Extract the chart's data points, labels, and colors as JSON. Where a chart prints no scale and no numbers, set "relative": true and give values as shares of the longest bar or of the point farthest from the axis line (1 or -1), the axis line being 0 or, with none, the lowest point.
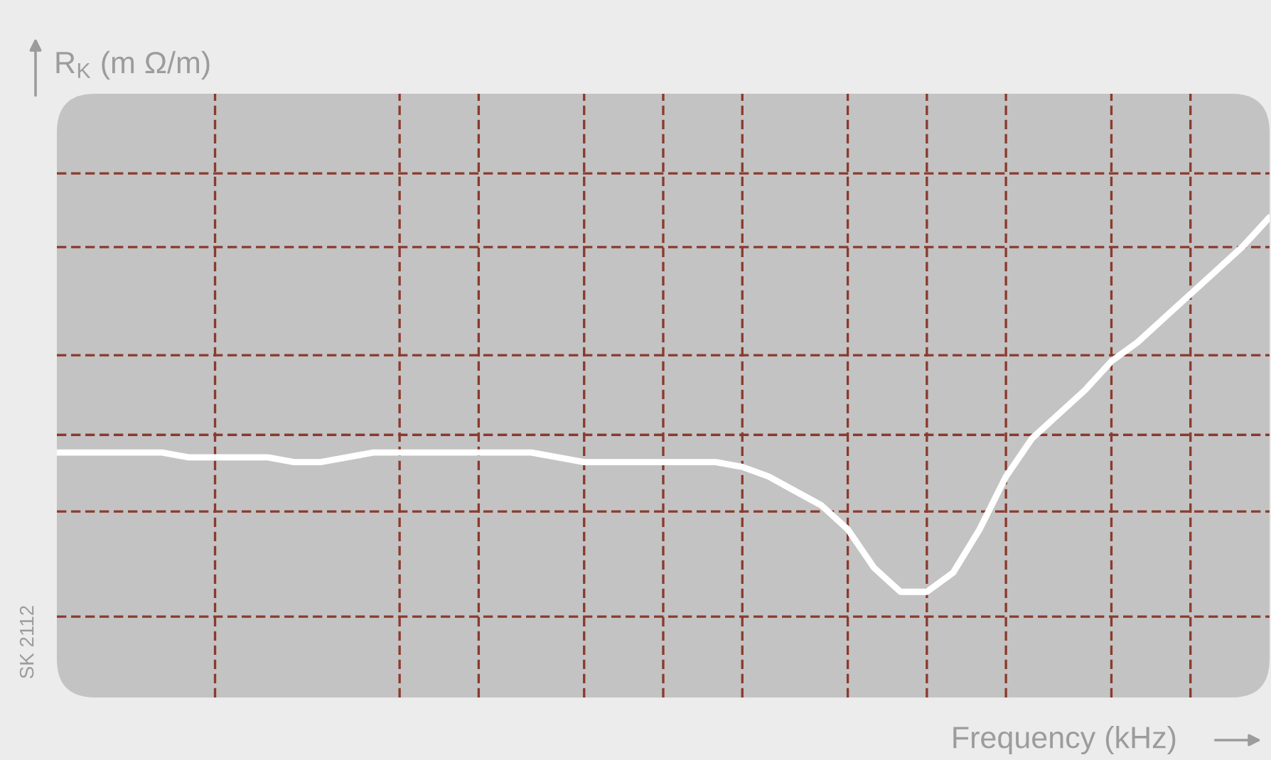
{
  "chart_data": {
    "type": "line",
    "xlabel": "Frequency (kHz)",
    "ylabel": "R$_{K}$ (m Ω/m)",
    "annotations": [
      "SK 2112"
    ],
    "relative": true,
    "grid": true,
    "categories": [
      null,
      null,
      null,
      null,
      null,
      null,
      null,
      null,
      null,
      null,
      null,
      null,
      null,
      null,
      null,
      null,
      null,
      null,
      null,
      null,
      null,
      null,
      null,
      null,
      null,
      null,
      null,
      null,
      null,
      null,
      null,
      null,
      null,
      null,
      null,
      null,
      null,
      null,
      null,
      null,
      null,
      null,
      null,
      null,
      null,
      null,
      null
    ],
    "series": [
      {
        "color": "#ffffff",
        "values": [
          0.51,
          0.51,
          0.51,
          0.51,
          0.51,
          0.5,
          0.5,
          0.5,
          0.5,
          0.49,
          0.49,
          0.5,
          0.51,
          0.51,
          0.51,
          0.51,
          0.51,
          0.51,
          0.51,
          0.5,
          0.49,
          0.49,
          0.49,
          0.49,
          0.49,
          0.49,
          0.48,
          0.46,
          0.43,
          0.4,
          0.35,
          0.27,
          0.22,
          0.22,
          0.26,
          0.35,
          0.46,
          0.54,
          0.59,
          0.64,
          0.7,
          0.74,
          0.79,
          0.84,
          0.89,
          0.94,
          1
        ]
      }
    ]
  }
}
